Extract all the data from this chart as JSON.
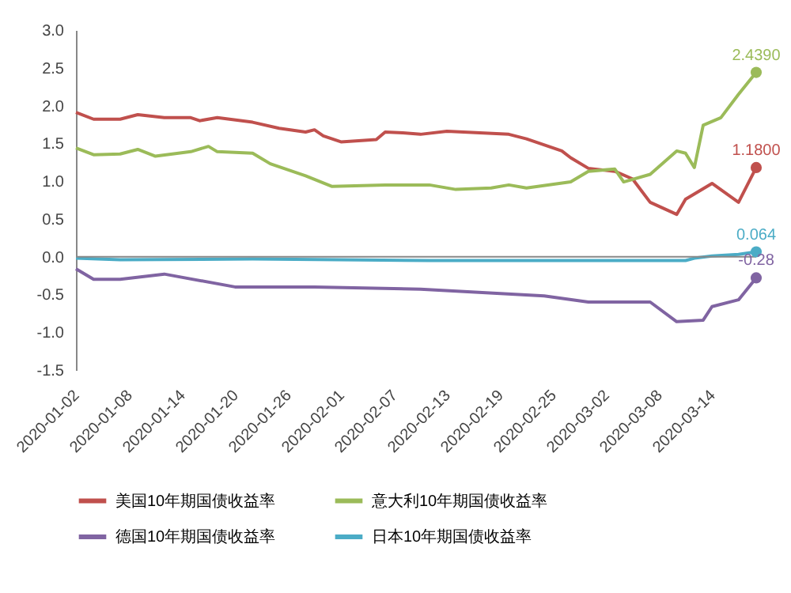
{
  "chart_data": {
    "type": "line",
    "xlim": [
      "2020-01-02",
      "2020-03-19"
    ],
    "xticks": [
      "2020-01-02",
      "2020-01-08",
      "2020-01-14",
      "2020-01-20",
      "2020-01-26",
      "2020-02-01",
      "2020-02-07",
      "2020-02-13",
      "2020-02-19",
      "2020-02-25",
      "2020-03-02",
      "2020-03-08",
      "2020-03-14"
    ],
    "ylim": [
      -1.5,
      3.0
    ],
    "yticks": [
      {
        "value": -1.5,
        "label": "-1.5"
      },
      {
        "value": -1,
        "label": "-1.0"
      },
      {
        "value": -0.5,
        "label": "-0.5"
      },
      {
        "value": 0,
        "label": "0.0"
      },
      {
        "value": 0.5,
        "label": "0.5"
      },
      {
        "value": 1,
        "label": "1.0"
      },
      {
        "value": 1.5,
        "label": "1.5"
      },
      {
        "value": 2,
        "label": "2.0"
      },
      {
        "value": 2.5,
        "label": "2.5"
      },
      {
        "value": 3,
        "label": "3.0"
      }
    ],
    "grid": false,
    "legend": "bottom",
    "ref_lines": [
      {
        "axis": "y",
        "value": 0
      }
    ],
    "series": [
      {
        "name": "美国10年期国债收益率",
        "color": "#c0504d",
        "x": [
          "2020-01-02",
          "2020-01-04",
          "2020-01-07",
          "2020-01-09",
          "2020-01-12",
          "2020-01-15",
          "2020-01-16",
          "2020-01-18",
          "2020-01-22",
          "2020-01-25",
          "2020-01-28",
          "2020-01-29",
          "2020-01-30",
          "2020-02-01",
          "2020-02-05",
          "2020-02-06",
          "2020-02-08",
          "2020-02-10",
          "2020-02-13",
          "2020-02-20",
          "2020-02-22",
          "2020-02-26",
          "2020-02-27",
          "2020-02-29",
          "2020-03-03",
          "2020-03-05",
          "2020-03-07",
          "2020-03-10",
          "2020-03-11",
          "2020-03-14",
          "2020-03-17",
          "2020-03-19"
        ],
        "values": [
          1.91,
          1.82,
          1.82,
          1.88,
          1.84,
          1.84,
          1.8,
          1.84,
          1.78,
          1.7,
          1.65,
          1.68,
          1.6,
          1.52,
          1.55,
          1.65,
          1.64,
          1.62,
          1.66,
          1.62,
          1.56,
          1.4,
          1.31,
          1.17,
          1.13,
          1.03,
          0.72,
          0.56,
          0.76,
          0.97,
          0.72,
          1.18
        ],
        "value_labels": [
          null,
          null,
          null,
          null,
          null,
          null,
          null,
          null,
          null,
          null,
          null,
          null,
          null,
          null,
          null,
          null,
          null,
          null,
          null,
          null,
          null,
          null,
          null,
          null,
          null,
          null,
          null,
          null,
          null,
          null,
          null,
          "1.1800"
        ]
      },
      {
        "name": "意大利10年期国债收益率",
        "color": "#9bbb59",
        "x": [
          "2020-01-02",
          "2020-01-04",
          "2020-01-07",
          "2020-01-09",
          "2020-01-11",
          "2020-01-15",
          "2020-01-17",
          "2020-01-18",
          "2020-01-22",
          "2020-01-24",
          "2020-01-28",
          "2020-01-31",
          "2020-02-06",
          "2020-02-11",
          "2020-02-14",
          "2020-02-18",
          "2020-02-20",
          "2020-02-22",
          "2020-02-27",
          "2020-02-29",
          "2020-03-03",
          "2020-03-04",
          "2020-03-07",
          "2020-03-10",
          "2020-03-11",
          "2020-03-12",
          "2020-03-13",
          "2020-03-15",
          "2020-03-17",
          "2020-03-19"
        ],
        "values": [
          1.44,
          1.35,
          1.36,
          1.42,
          1.33,
          1.39,
          1.46,
          1.39,
          1.37,
          1.23,
          1.07,
          0.93,
          0.95,
          0.95,
          0.89,
          0.91,
          0.95,
          0.91,
          0.99,
          1.13,
          1.16,
          0.99,
          1.09,
          1.4,
          1.37,
          1.18,
          1.74,
          1.84,
          2.15,
          2.439
        ],
        "value_labels": [
          null,
          null,
          null,
          null,
          null,
          null,
          null,
          null,
          null,
          null,
          null,
          null,
          null,
          null,
          null,
          null,
          null,
          null,
          null,
          null,
          null,
          null,
          null,
          null,
          null,
          null,
          null,
          null,
          null,
          "2.4390"
        ]
      },
      {
        "name": "德国10年期国债收益率",
        "color": "#8064a2",
        "x": [
          "2020-01-02",
          "2020-01-04",
          "2020-01-07",
          "2020-01-12",
          "2020-01-20",
          "2020-01-29",
          "2020-02-10",
          "2020-02-24",
          "2020-02-29",
          "2020-03-04",
          "2020-03-07",
          "2020-03-10",
          "2020-03-13",
          "2020-03-14",
          "2020-03-17",
          "2020-03-19"
        ],
        "values": [
          -0.16,
          -0.3,
          -0.3,
          -0.23,
          -0.4,
          -0.4,
          -0.43,
          -0.52,
          -0.6,
          -0.6,
          -0.6,
          -0.86,
          -0.84,
          -0.66,
          -0.57,
          -0.28
        ],
        "value_labels": [
          null,
          null,
          null,
          null,
          null,
          null,
          null,
          null,
          null,
          null,
          null,
          null,
          null,
          null,
          null,
          "-0.28"
        ]
      },
      {
        "name": "日本10年期国债收益率",
        "color": "#4bacc6",
        "x": [
          "2020-01-02",
          "2020-01-07",
          "2020-01-22",
          "2020-02-11",
          "2020-03-02",
          "2020-03-11",
          "2020-03-12",
          "2020-03-14",
          "2020-03-17",
          "2020-03-19"
        ],
        "values": [
          -0.02,
          -0.04,
          -0.03,
          -0.05,
          -0.05,
          -0.05,
          -0.02,
          0.01,
          0.03,
          0.064
        ],
        "value_labels": [
          null,
          null,
          null,
          null,
          null,
          null,
          null,
          null,
          null,
          "0.064"
        ]
      }
    ]
  }
}
